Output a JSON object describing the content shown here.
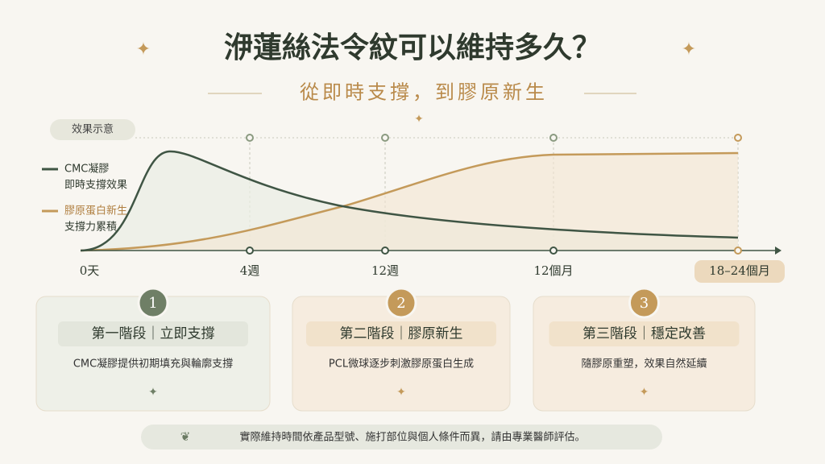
{
  "header": {
    "title": "洢蓮絲法令紋可以維持多久？",
    "subtitle": "從即時支撐，到膠原新生"
  },
  "chart": {
    "tag": "效果示意",
    "legend": [
      {
        "name": "CMC凝膠",
        "note": "即時支撐效果"
      },
      {
        "name": "膠原蛋白新生",
        "note": "支撐力累積"
      }
    ],
    "timeline": [
      "0天",
      "4週",
      "12週",
      "12個月",
      "18–24個月"
    ]
  },
  "stages": [
    {
      "number": "1",
      "title": "第一階段｜立即支撐",
      "text": "CMC凝膠提供初期填充與輪廓支撐"
    },
    {
      "number": "2",
      "title": "第二階段｜膠原新生",
      "text": "PCL微球逐步刺激膠原蛋白生成"
    },
    {
      "number": "3",
      "title": "第三階段｜穩定改善",
      "text": "隨膠原重塑，效果自然延續"
    }
  ],
  "footer": "實際維持時間依產品型號、施打部位與個人條件而異，請由專業醫師評估。"
}
